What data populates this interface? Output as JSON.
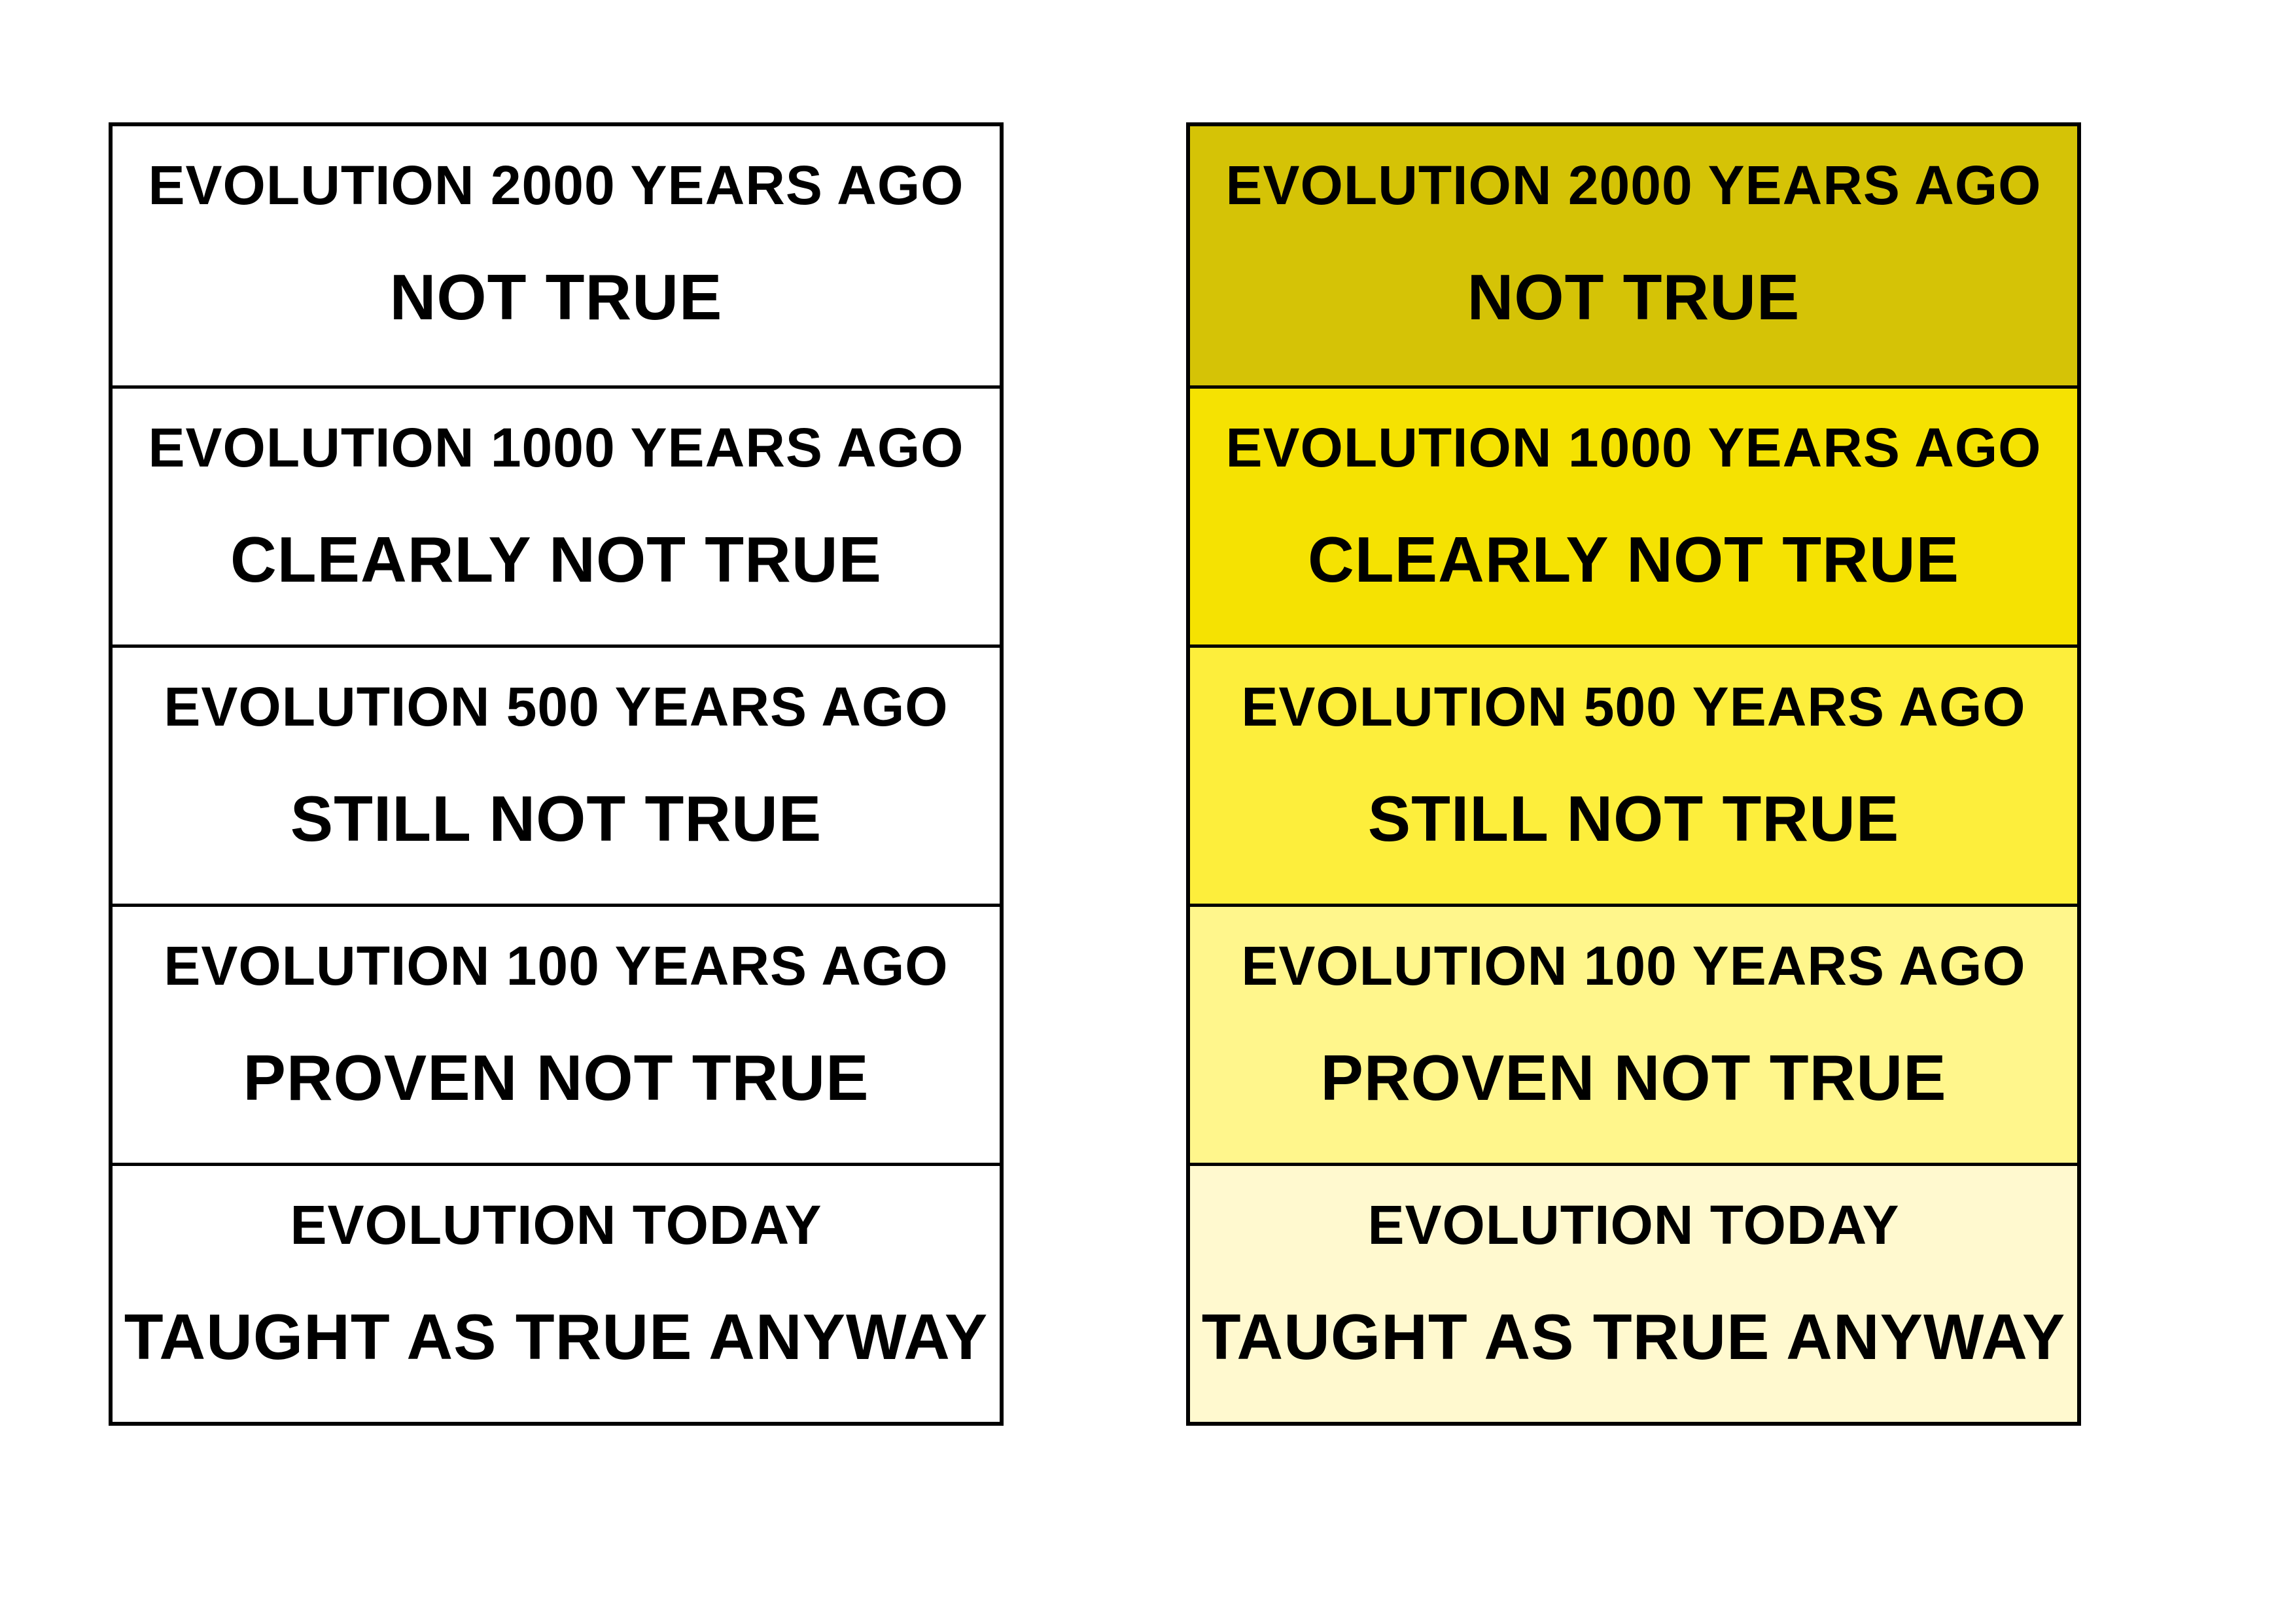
{
  "columns": [
    {
      "cards": [
        {
          "line1": "EVOLUTION 2000 YEARS AGO",
          "line2": "NOT TRUE"
        },
        {
          "line1": "EVOLUTION 1000 YEARS AGO",
          "line2": "CLEARLY NOT TRUE"
        },
        {
          "line1": "EVOLUTION 500 YEARS AGO",
          "line2": "STILL NOT TRUE"
        },
        {
          "line1": "EVOLUTION 100 YEARS AGO",
          "line2": "PROVEN NOT TRUE"
        },
        {
          "line1": "EVOLUTION TODAY",
          "line2": "TAUGHT AS TRUE ANYWAY"
        }
      ]
    },
    {
      "cards": [
        {
          "line1": "EVOLUTION 2000 YEARS AGO",
          "line2": "NOT TRUE"
        },
        {
          "line1": "EVOLUTION 1000 YEARS AGO",
          "line2": "CLEARLY NOT TRUE"
        },
        {
          "line1": "EVOLUTION 500 YEARS AGO",
          "line2": "STILL NOT TRUE"
        },
        {
          "line1": "EVOLUTION 100 YEARS AGO",
          "line2": "PROVEN NOT TRUE"
        },
        {
          "line1": "EVOLUTION TODAY",
          "line2": "TAUGHT AS TRUE ANYWAY"
        }
      ]
    }
  ]
}
